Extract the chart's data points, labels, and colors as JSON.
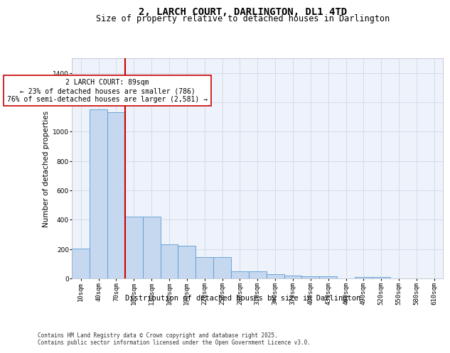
{
  "title": "2, LARCH COURT, DARLINGTON, DL1 4TD",
  "subtitle": "Size of property relative to detached houses in Darlington",
  "xlabel": "Distribution of detached houses by size in Darlington",
  "ylabel": "Number of detached properties",
  "categories": [
    "10sqm",
    "40sqm",
    "70sqm",
    "100sqm",
    "130sqm",
    "160sqm",
    "190sqm",
    "220sqm",
    "250sqm",
    "280sqm",
    "310sqm",
    "340sqm",
    "370sqm",
    "400sqm",
    "430sqm",
    "460sqm",
    "490sqm",
    "520sqm",
    "550sqm",
    "580sqm",
    "610sqm"
  ],
  "values": [
    205,
    1150,
    1130,
    420,
    420,
    230,
    225,
    145,
    145,
    50,
    50,
    30,
    20,
    15,
    15,
    0,
    10,
    10,
    0,
    0,
    0
  ],
  "bar_color": "#c5d8f0",
  "bar_edge_color": "#5b9bd5",
  "vline_x": 2.5,
  "vline_color": "#cc0000",
  "annotation_text": "2 LARCH COURT: 89sqm\n← 23% of detached houses are smaller (786)\n76% of semi-detached houses are larger (2,581) →",
  "annotation_box_color": "#ffffff",
  "annotation_box_edge": "#cc0000",
  "ylim": [
    0,
    1500
  ],
  "yticks": [
    0,
    200,
    400,
    600,
    800,
    1000,
    1200,
    1400
  ],
  "grid_color": "#d0d8e8",
  "bg_color": "#eef2fa",
  "footer_text": "Contains HM Land Registry data © Crown copyright and database right 2025.\nContains public sector information licensed under the Open Government Licence v3.0.",
  "title_fontsize": 10,
  "subtitle_fontsize": 8.5,
  "axis_label_fontsize": 7.5,
  "tick_fontsize": 6.5,
  "annotation_fontsize": 7,
  "footer_fontsize": 5.5
}
